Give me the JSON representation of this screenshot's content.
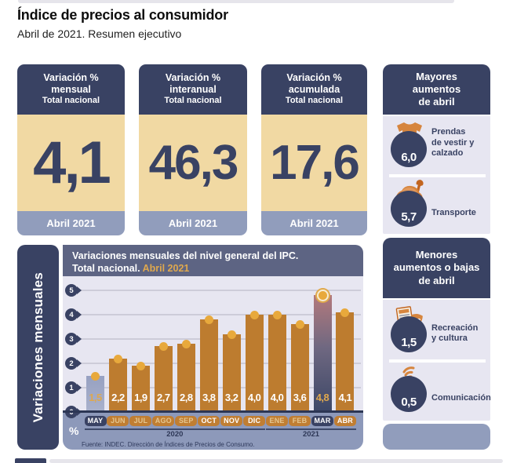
{
  "page": {
    "title": "Índice de precios al consumidor",
    "subtitle": "Abril de 2021. Resumen ejecutivo"
  },
  "stat_cards": [
    {
      "title": "Variación %\nmensual",
      "subtitle": "Total nacional",
      "value": "4,1",
      "period": "Abril 2021"
    },
    {
      "title": "Variación %\ninteranual",
      "subtitle": "Total nacional",
      "value": "46,3",
      "period": "Abril 2021"
    },
    {
      "title": "Variación %\nacumulada",
      "subtitle": "Total nacional",
      "value": "17,6",
      "period": "Abril 2021"
    }
  ],
  "highlights_up": {
    "title": "Mayores\naumentos\nde abril",
    "items": [
      {
        "value": "6,0",
        "label": "Prendas\nde vestir y\ncalzado",
        "icon": "clothing-icon"
      },
      {
        "value": "5,7",
        "label": "Transporte",
        "icon": "car-icon"
      }
    ]
  },
  "highlights_down": {
    "title": "Menores\naumentos o bajas\nde abril",
    "items": [
      {
        "value": "1,5",
        "label": "Recreación\ny cultura",
        "icon": "newspaper-mask-icon"
      },
      {
        "value": "0,5",
        "label": "Comunicación",
        "icon": "phone-signal-icon"
      }
    ]
  },
  "chart": {
    "sidebar_label": "Variaciones mensuales",
    "title_line1": "Variaciones mensuales del nivel general del IPC.",
    "title_line2": "Total nacional.",
    "title_highlight": "Abril 2021"
  },
  "chart_data": {
    "type": "bar",
    "title": "Variaciones mensuales del nivel general del IPC. Total nacional. Abril 2021",
    "categories": [
      "MAY",
      "JUN",
      "JUL",
      "AGO",
      "SEP",
      "OCT",
      "NOV",
      "DIC",
      "ENE",
      "FEB",
      "MAR",
      "ABR"
    ],
    "values": [
      1.5,
      2.2,
      1.9,
      2.7,
      2.8,
      3.8,
      3.2,
      4.0,
      4.0,
      3.6,
      4.8,
      4.1
    ],
    "value_labels": [
      "1,5",
      "2,2",
      "1,9",
      "2,7",
      "2,8",
      "3,8",
      "3,2",
      "4,0",
      "4,0",
      "3,6",
      "4,8",
      "4,1"
    ],
    "ylabel": "Variaciones mensuales",
    "unit": "%",
    "ylim": [
      0,
      5
    ],
    "yticks": [
      0,
      1,
      2,
      3,
      4,
      5
    ],
    "grid": true,
    "legend": null,
    "year_groups": [
      {
        "label": "2020",
        "start_index": 0,
        "end_index": 7
      },
      {
        "label": "2021",
        "start_index": 8,
        "end_index": 11
      }
    ],
    "slate_bar_index": 0,
    "gradient_bar_index": 10,
    "bright_badge_indices": [
      5,
      6,
      7,
      11
    ],
    "source": "Fuente: INDEC. Dirección de Índices de Precios de Consumo."
  },
  "colors": {
    "navy": "#394263",
    "slate_header": "#5d6483",
    "tan_body": "#f1d9a3",
    "gold_accent": "#dfa84e",
    "dot_gold": "#e8a93c",
    "bar_orange": "#bd7c2f",
    "badge_orange": "#c07e33",
    "lavender": "#e7e6f1",
    "footer_blue": "#919dbc",
    "slate_bar": "#9ba5c4"
  }
}
